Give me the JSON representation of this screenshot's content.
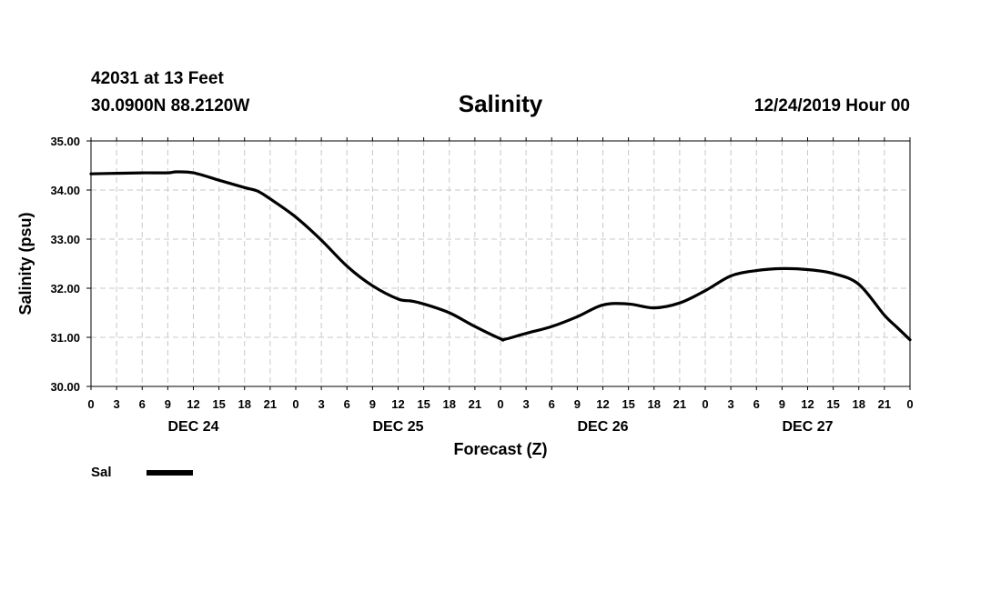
{
  "header": {
    "station": "42031 at 13 Feet",
    "coords": "30.0900N 88.2120W",
    "datetime": "12/24/2019 Hour 00"
  },
  "chart_data": {
    "type": "line",
    "title": "Salinity",
    "xlabel": "Forecast (Z)",
    "ylabel": "Salinity (psu)",
    "ylim": [
      30,
      35
    ],
    "xlim_hours": [
      0,
      96
    ],
    "y_ticks": [
      "30.00",
      "31.00",
      "32.00",
      "33.00",
      "34.00",
      "35.00"
    ],
    "x_tick_labels": [
      "0",
      "3",
      "6",
      "9",
      "12",
      "15",
      "18",
      "21",
      "0",
      "3",
      "6",
      "9",
      "12",
      "15",
      "18",
      "21",
      "0",
      "3",
      "6",
      "9",
      "12",
      "15",
      "18",
      "21",
      "0",
      "3",
      "6",
      "9",
      "12",
      "15",
      "18",
      "21",
      "0"
    ],
    "day_labels": [
      "DEC 24",
      "DEC 25",
      "DEC 26",
      "DEC 27"
    ],
    "grid": true,
    "legend_position": "bottom-left",
    "series": [
      {
        "name": "Sal",
        "color": "#000000",
        "x": [
          0,
          3,
          6,
          9,
          10,
          12,
          15,
          18,
          19.5,
          21,
          24,
          27,
          30,
          33,
          36,
          37.5,
          39,
          42,
          45,
          48,
          48.5,
          51,
          54,
          57,
          60,
          63,
          66,
          69,
          72,
          75,
          78,
          81,
          84,
          87,
          90,
          93,
          94.5,
          96
        ],
        "values": [
          34.33,
          34.34,
          34.35,
          34.35,
          34.37,
          34.35,
          34.2,
          34.05,
          33.98,
          33.82,
          33.45,
          32.98,
          32.45,
          32.05,
          31.78,
          31.74,
          31.68,
          31.5,
          31.22,
          30.97,
          30.96,
          31.08,
          31.22,
          31.42,
          31.66,
          31.68,
          31.6,
          31.7,
          31.95,
          32.25,
          32.36,
          32.4,
          32.38,
          32.3,
          32.08,
          31.45,
          31.2,
          30.95
        ]
      }
    ]
  }
}
